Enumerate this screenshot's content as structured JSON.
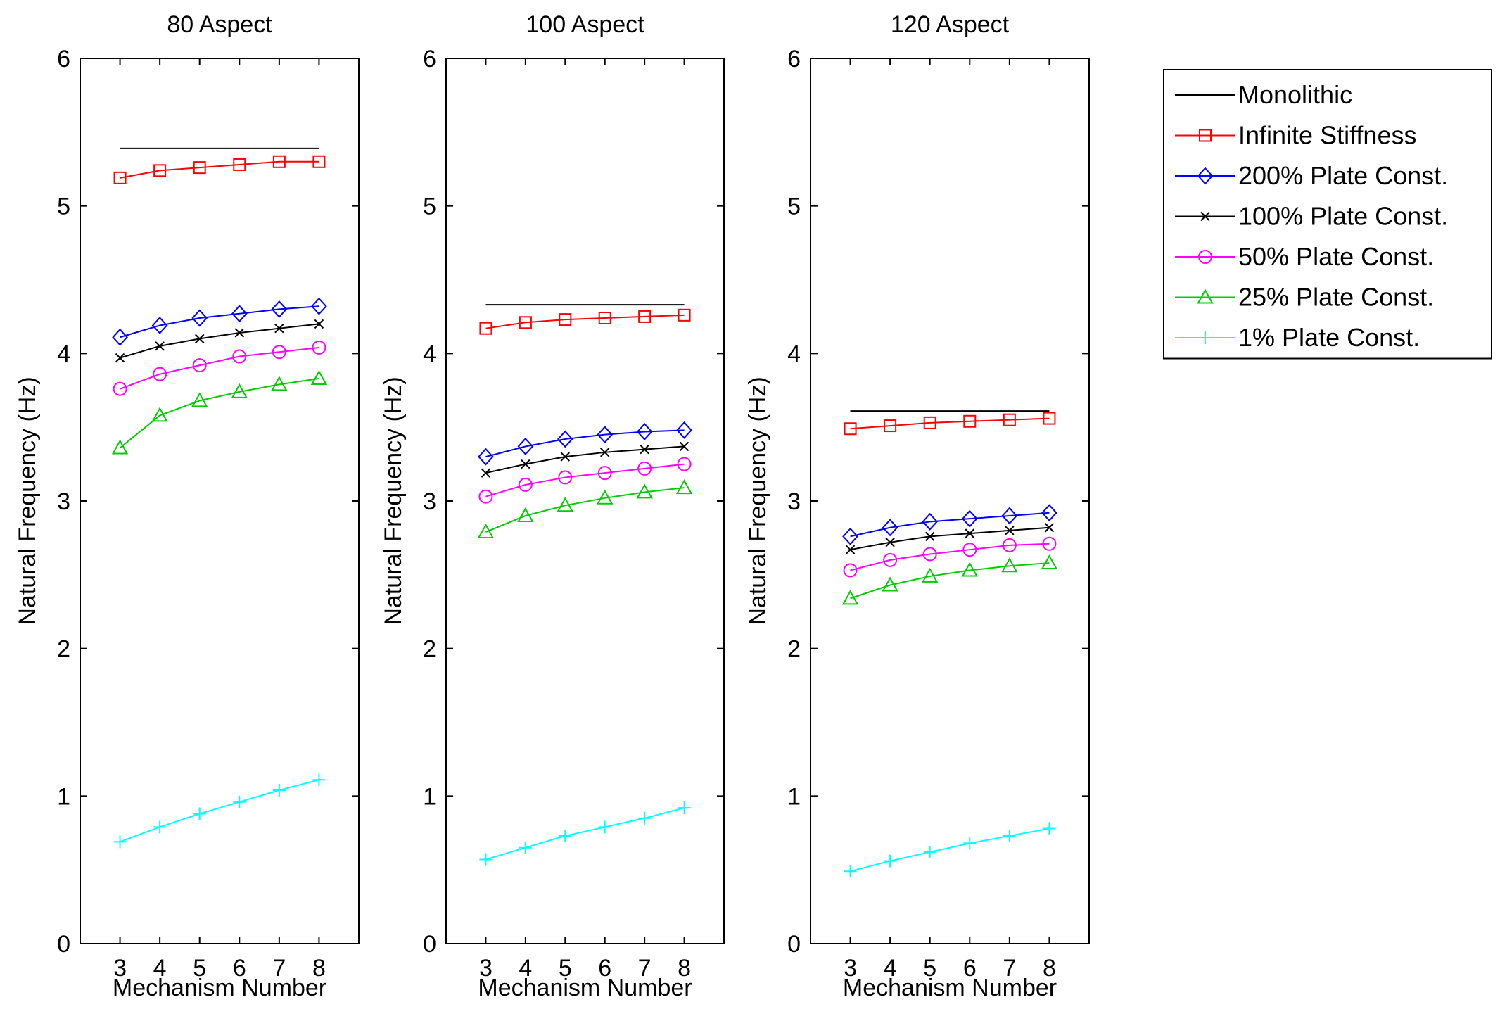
{
  "chart_data": {
    "type": "line",
    "x": [
      3,
      4,
      5,
      6,
      7,
      8
    ],
    "xlabel": "Mechanism Number",
    "ylabel": "Natural Frequency (Hz)",
    "xlim": [
      2,
      9
    ],
    "ylim": [
      0,
      6
    ],
    "yticks": [
      0,
      1,
      2,
      3,
      4,
      5,
      6
    ],
    "grid": false,
    "legend_position": "outside-right-top",
    "legend": [
      {
        "name": "Monolithic",
        "color": "#000000",
        "marker": "none"
      },
      {
        "name": "Infinite Stiffness",
        "color": "#ff0000",
        "marker": "square"
      },
      {
        "name": "200% Plate Const.",
        "color": "#0000ff",
        "marker": "diamond"
      },
      {
        "name": "100% Plate Const.",
        "color": "#000000",
        "marker": "x"
      },
      {
        "name": "50% Plate Const.",
        "color": "#ff00ff",
        "marker": "circle"
      },
      {
        "name": "25% Plate Const.",
        "color": "#00cc00",
        "marker": "triangle"
      },
      {
        "name": "1% Plate Const.",
        "color": "#00ffff",
        "marker": "plus"
      }
    ],
    "panels": [
      {
        "title": "80 Aspect",
        "series": [
          {
            "name": "Monolithic",
            "values": [
              5.39,
              5.39,
              5.39,
              5.39,
              5.39,
              5.39
            ]
          },
          {
            "name": "Infinite Stiffness",
            "values": [
              5.19,
              5.24,
              5.26,
              5.28,
              5.3,
              5.3
            ]
          },
          {
            "name": "200% Plate Const.",
            "values": [
              4.11,
              4.19,
              4.24,
              4.27,
              4.3,
              4.32
            ]
          },
          {
            "name": "100% Plate Const.",
            "values": [
              3.97,
              4.05,
              4.1,
              4.14,
              4.17,
              4.2
            ]
          },
          {
            "name": "50% Plate Const.",
            "values": [
              3.76,
              3.86,
              3.92,
              3.98,
              4.01,
              4.04
            ]
          },
          {
            "name": "25% Plate Const.",
            "values": [
              3.36,
              3.58,
              3.68,
              3.74,
              3.79,
              3.83
            ]
          },
          {
            "name": "1% Plate Const.",
            "values": [
              0.69,
              0.79,
              0.88,
              0.96,
              1.04,
              1.11
            ]
          }
        ]
      },
      {
        "title": "100 Aspect",
        "series": [
          {
            "name": "Monolithic",
            "values": [
              4.33,
              4.33,
              4.33,
              4.33,
              4.33,
              4.33
            ]
          },
          {
            "name": "Infinite Stiffness",
            "values": [
              4.17,
              4.21,
              4.23,
              4.24,
              4.25,
              4.26
            ]
          },
          {
            "name": "200% Plate Const.",
            "values": [
              3.3,
              3.37,
              3.42,
              3.45,
              3.47,
              3.48
            ]
          },
          {
            "name": "100% Plate Const.",
            "values": [
              3.19,
              3.25,
              3.3,
              3.33,
              3.35,
              3.37
            ]
          },
          {
            "name": "50% Plate Const.",
            "values": [
              3.03,
              3.11,
              3.16,
              3.19,
              3.22,
              3.25
            ]
          },
          {
            "name": "25% Plate Const.",
            "values": [
              2.79,
              2.9,
              2.97,
              3.02,
              3.06,
              3.09
            ]
          },
          {
            "name": "1% Plate Const.",
            "values": [
              0.57,
              0.65,
              0.73,
              0.79,
              0.85,
              0.92
            ]
          }
        ]
      },
      {
        "title": "120 Aspect",
        "series": [
          {
            "name": "Monolithic",
            "values": [
              3.61,
              3.61,
              3.61,
              3.61,
              3.61,
              3.61
            ]
          },
          {
            "name": "Infinite Stiffness",
            "values": [
              3.49,
              3.51,
              3.53,
              3.54,
              3.55,
              3.56
            ]
          },
          {
            "name": "200% Plate Const.",
            "values": [
              2.76,
              2.82,
              2.86,
              2.88,
              2.9,
              2.92
            ]
          },
          {
            "name": "100% Plate Const.",
            "values": [
              2.67,
              2.72,
              2.76,
              2.78,
              2.8,
              2.82
            ]
          },
          {
            "name": "50% Plate Const.",
            "values": [
              2.53,
              2.6,
              2.64,
              2.67,
              2.7,
              2.71
            ]
          },
          {
            "name": "25% Plate Const.",
            "values": [
              2.34,
              2.43,
              2.49,
              2.53,
              2.56,
              2.58
            ]
          },
          {
            "name": "1% Plate Const.",
            "values": [
              0.49,
              0.56,
              0.62,
              0.68,
              0.73,
              0.78
            ]
          }
        ]
      }
    ]
  }
}
